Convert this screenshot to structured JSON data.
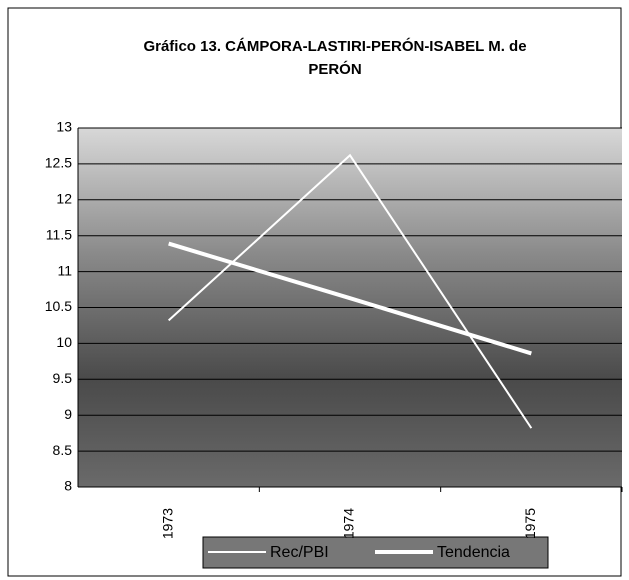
{
  "chart_data": {
    "type": "line",
    "title_lines": [
      "Gráfico 13. CÁMPORA-LASTIRI-PERÓN-ISABEL M. de",
      "PERÓN"
    ],
    "categories": [
      "1973",
      "1974",
      "1975"
    ],
    "series": [
      {
        "name": "Rec/PBI",
        "color": "#ffffff",
        "values": [
          10.32,
          12.62,
          8.82
        ]
      },
      {
        "name": "Tendencia",
        "color": "#ffffff",
        "values": [
          11.39,
          10.63,
          9.86
        ]
      }
    ],
    "ylim": [
      8,
      13
    ],
    "yticks": [
      8,
      8.5,
      9,
      9.5,
      10,
      10.5,
      11,
      11.5,
      12,
      12.5,
      13
    ],
    "grid": true,
    "legend": "bottom"
  }
}
